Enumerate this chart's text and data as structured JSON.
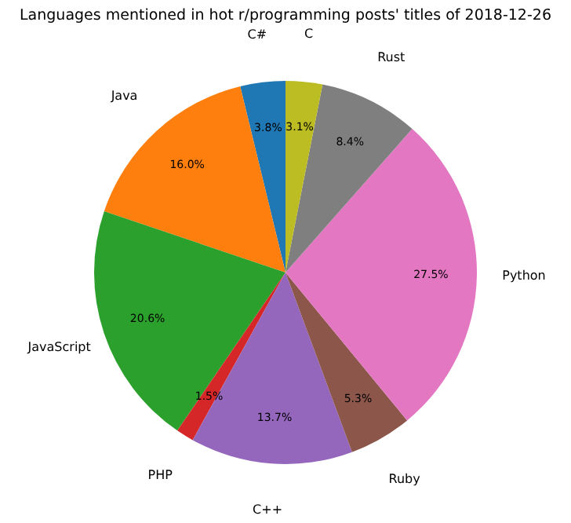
{
  "chart_data": {
    "type": "pie",
    "title": "Languages mentioned in hot r/programming posts' titles of 2018-12-26",
    "categories": [
      "C#",
      "Java",
      "JavaScript",
      "PHP",
      "C++",
      "Ruby",
      "Python",
      "Rust",
      "C"
    ],
    "values": [
      3.8,
      16.0,
      20.6,
      1.5,
      13.7,
      5.3,
      27.5,
      8.4,
      3.1
    ],
    "value_labels": [
      "3.8%",
      "16.0%",
      "20.6%",
      "1.5%",
      "13.7%",
      "5.3%",
      "27.5%",
      "8.4%",
      "3.1%"
    ],
    "colors": [
      "#1f77b4",
      "#ff7f0e",
      "#2ca02c",
      "#d62728",
      "#9467bd",
      "#8c564b",
      "#e377c2",
      "#7f7f7f",
      "#bcbd22"
    ],
    "legend": false
  }
}
